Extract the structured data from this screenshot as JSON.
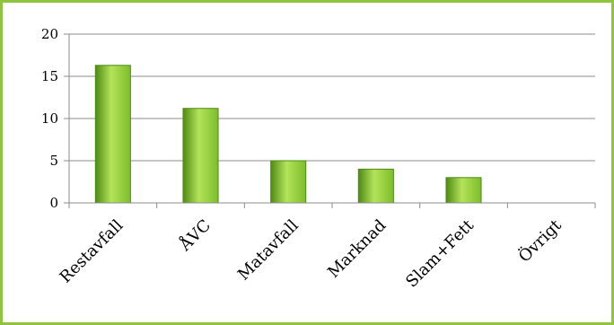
{
  "chart_data": {
    "type": "bar",
    "title": "",
    "xlabel": "",
    "ylabel": "",
    "categories": [
      "Restavfall",
      "ÅVC",
      "Matavfall",
      "Marknad",
      "Slam+Fett",
      "Övrigt"
    ],
    "values": [
      16.3,
      11.2,
      5.0,
      4.0,
      3.0,
      0
    ],
    "ylim": [
      0,
      20
    ],
    "yticks": [
      "0",
      "5",
      "10",
      "15",
      "20"
    ],
    "grid": true,
    "bar_color": "#7cbd2a",
    "bar_color_light": "#b4e35a",
    "bar_color_dark": "#4f8a14"
  }
}
